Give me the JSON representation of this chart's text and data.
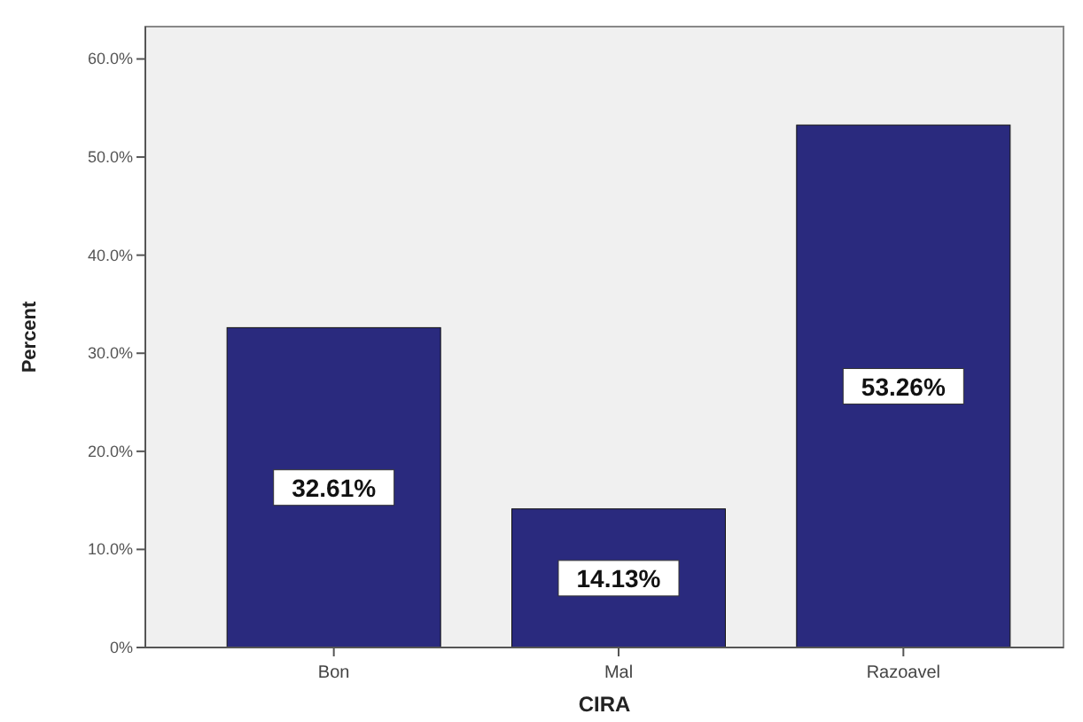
{
  "chart_data": {
    "type": "bar",
    "xlabel": "CIRA",
    "ylabel": "Percent",
    "categories": [
      "Bon",
      "Mal",
      "Razoavel"
    ],
    "values": [
      32.61,
      14.13,
      53.26
    ],
    "value_labels": [
      "32.61%",
      "14.13%",
      "53.26%"
    ],
    "color": "#2a2a7e",
    "ylim": [
      0,
      63.3
    ],
    "yticks": [
      {
        "value": 0,
        "label": "0%"
      },
      {
        "value": 10,
        "label": "10.0%"
      },
      {
        "value": 20,
        "label": "20.0%"
      },
      {
        "value": 30,
        "label": "30.0%"
      },
      {
        "value": 40,
        "label": "40.0%"
      },
      {
        "value": 50,
        "label": "50.0%"
      },
      {
        "value": 60,
        "label": "60.0%"
      }
    ],
    "grid": false
  }
}
